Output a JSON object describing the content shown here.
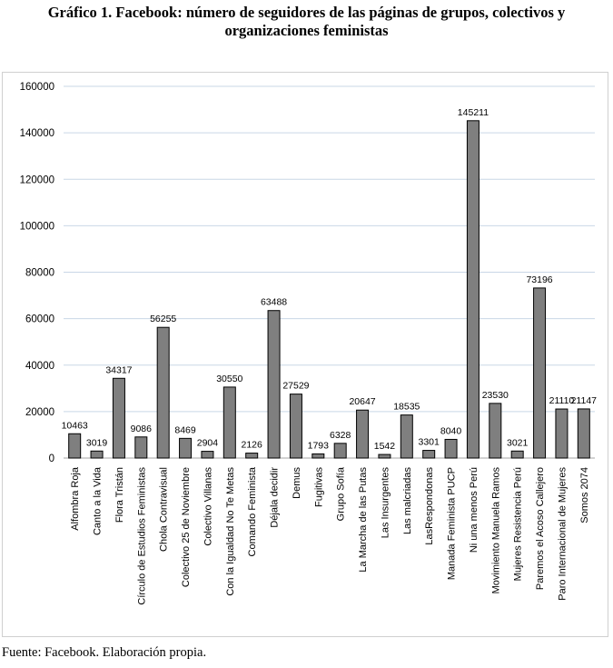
{
  "title_line1": "Gráfico 1. Facebook: número de seguidores de las páginas de grupos, colectivos y",
  "title_line2": "organizaciones feministas",
  "source": "Fuente: Facebook. Elaboración propia.",
  "colors": {
    "bar": "#7f7f7f",
    "bar_edge": "#000000",
    "grid": "#c9d7e6",
    "axis": "#a6a6a6"
  },
  "chart_data": {
    "type": "bar",
    "title": "Gráfico 1. Facebook: número de seguidores de las páginas de grupos, colectivos y organizaciones feministas",
    "xlabel": "",
    "ylabel": "",
    "ylim": [
      0,
      160000
    ],
    "yticks": [
      0,
      20000,
      40000,
      60000,
      80000,
      100000,
      120000,
      140000,
      160000
    ],
    "grid": true,
    "legend": "none",
    "categories": [
      "Alfombra Roja",
      "Canto a la Vida",
      "Flora Tristán",
      "Círculo de Estudios Feministas",
      "Chola Contravisual",
      "Colectivo 25 de Noviembre",
      "Colectivo Villanas",
      "Con la Igualdad No Te Metas",
      "Comando Feminista",
      "Déjala decidir",
      "Demus",
      "Fugitivas",
      "Grupo Sofía",
      "La Marcha de las Putas",
      "Las Insurgentes",
      "Las malcriadas",
      "LasRespondonas",
      "Manada Feminista PUCP",
      "Ni una menos Perú",
      "Movimiento Manuela Ramos",
      "Mujeres Resistencia Perú",
      "Paremos el Acoso Callejero",
      "Paro Internacional de Mujeres",
      "Somos 2074"
    ],
    "values": [
      10463,
      3019,
      34317,
      9086,
      56255,
      8469,
      2904,
      30550,
      2126,
      63488,
      27529,
      1793,
      6328,
      20647,
      1542,
      18535,
      3301,
      8040,
      145211,
      23530,
      3021,
      73196,
      21110,
      21147
    ]
  }
}
